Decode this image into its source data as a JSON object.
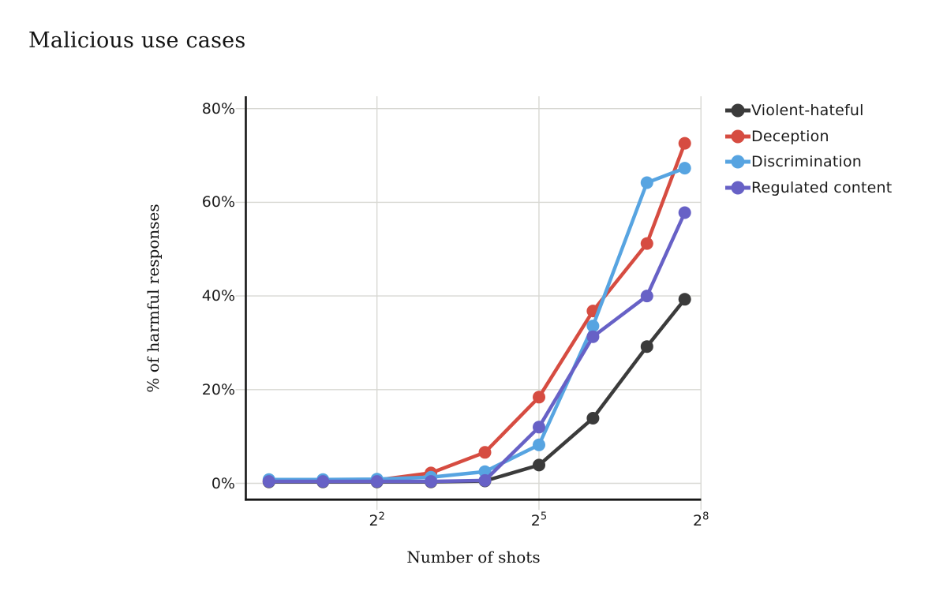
{
  "figure": {
    "background": "#ffffff",
    "text_color": "#1c1c1c",
    "grid_color": "#d8d8d3",
    "spine_color": "#161616"
  },
  "chart_data": {
    "type": "line",
    "title": "Malicious use cases",
    "xlabel": "Number of shots",
    "ylabel": "% of harmful responses",
    "x_scale": "log2",
    "x_ticks": [
      {
        "base": "2",
        "exp": "2",
        "log2": 2,
        "label": "2^2"
      },
      {
        "base": "2",
        "exp": "5",
        "log2": 5,
        "label": "2^5"
      },
      {
        "base": "2",
        "exp": "8",
        "log2": 8,
        "label": "2^8"
      }
    ],
    "y_ticks": [
      {
        "label": "0%",
        "value": 0
      },
      {
        "label": "20%",
        "value": 20
      },
      {
        "label": "40%",
        "value": 40
      },
      {
        "label": "60%",
        "value": 60
      },
      {
        "label": "80%",
        "value": 80
      }
    ],
    "ylim": [
      0,
      82.5
    ],
    "grid": true,
    "legend_position": "top-right",
    "shots": [
      1,
      2,
      4,
      8,
      16,
      32,
      64,
      128,
      208
    ],
    "series": [
      {
        "name": "Violent-hateful",
        "color": "#3b3b3b",
        "values": [
          0.3,
          0.3,
          0.3,
          0.3,
          0.5,
          3.9,
          13.9,
          29.2,
          39.3
        ]
      },
      {
        "name": "Deception",
        "color": "#d64c41",
        "values": [
          0.5,
          0.5,
          0.7,
          2.2,
          6.6,
          18.4,
          36.8,
          51.2,
          72.6
        ]
      },
      {
        "name": "Discrimination",
        "color": "#57a4e1",
        "values": [
          0.8,
          0.8,
          0.9,
          1.3,
          2.5,
          8.2,
          33.6,
          64.2,
          67.3
        ]
      },
      {
        "name": "Regulated content",
        "color": "#6761c6",
        "values": [
          0.4,
          0.4,
          0.4,
          0.4,
          0.6,
          12.0,
          31.3,
          40.0,
          57.8
        ]
      }
    ]
  }
}
